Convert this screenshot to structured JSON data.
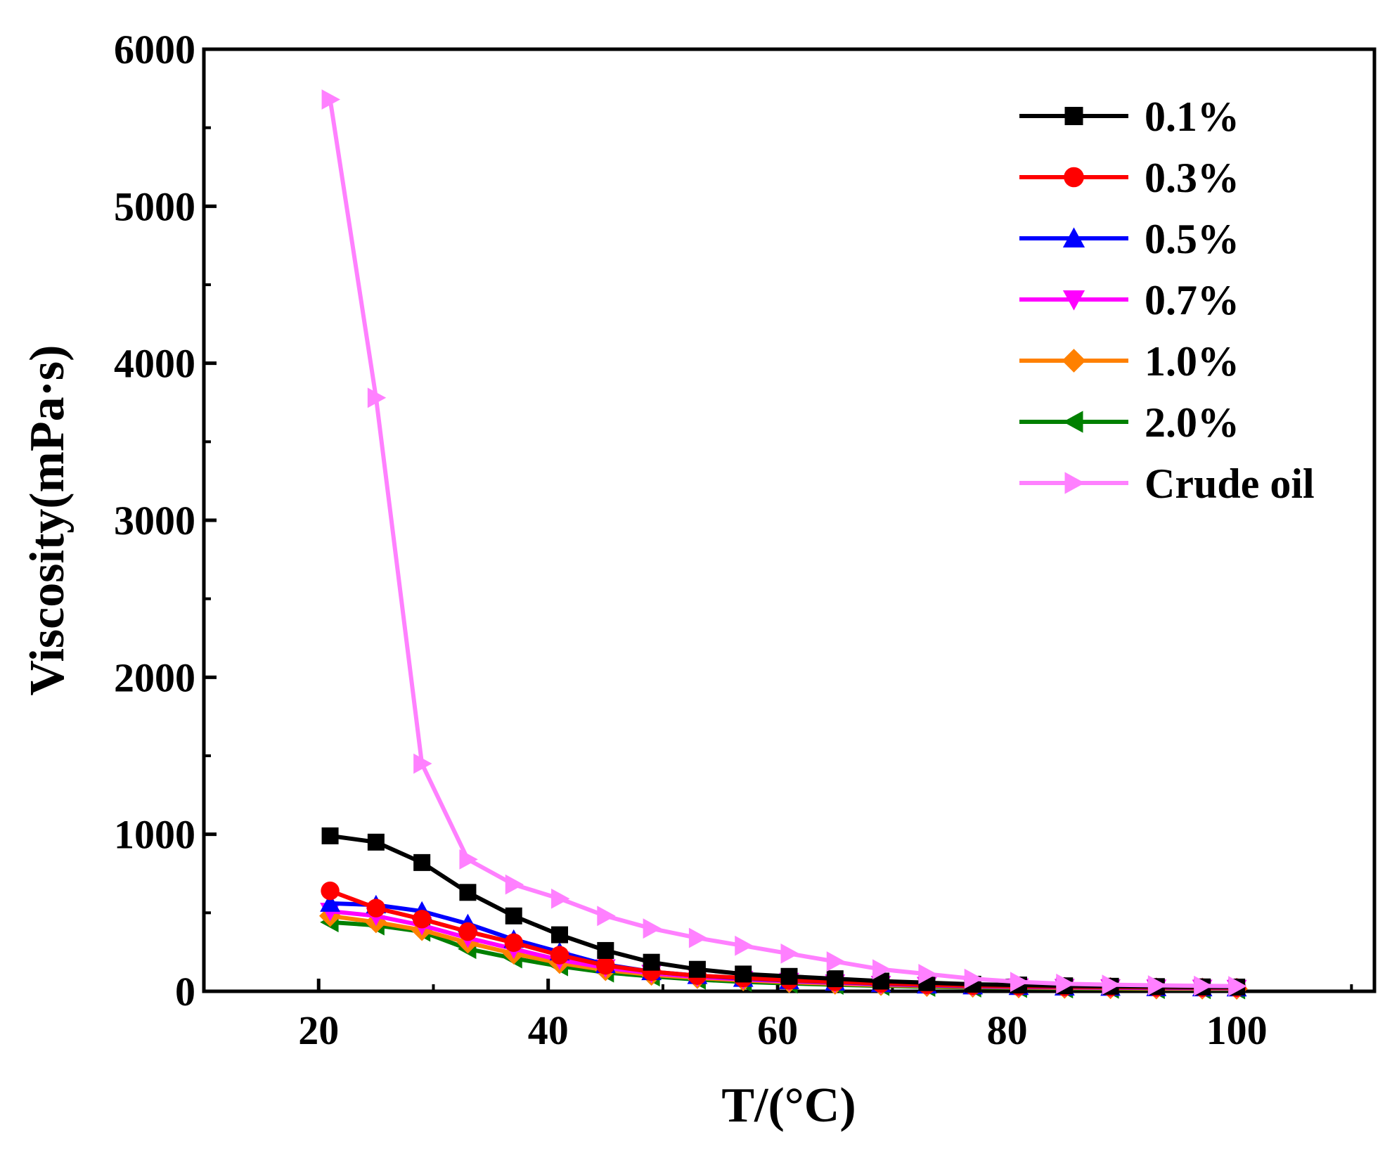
{
  "chart_data": {
    "type": "line",
    "title": "",
    "xlabel": "T/(°C)",
    "ylabel": "Viscosity(mPa·s)",
    "xlim": [
      10,
      112
    ],
    "ylim": [
      0,
      6000
    ],
    "xticks": [
      20,
      40,
      60,
      80,
      100
    ],
    "yticks": [
      0,
      1000,
      2000,
      3000,
      4000,
      5000,
      6000
    ],
    "x": [
      21,
      25,
      29,
      33,
      37,
      41,
      45,
      49,
      53,
      57,
      61,
      65,
      69,
      73,
      77,
      81,
      85,
      89,
      93,
      97,
      100
    ],
    "legend_position": "top-right",
    "grid": false,
    "series": [
      {
        "name": "0.1%",
        "color": "#000000",
        "marker": "square",
        "values": [
          990,
          950,
          820,
          630,
          480,
          360,
          260,
          185,
          140,
          110,
          95,
          80,
          65,
          55,
          45,
          40,
          35,
          32,
          30,
          28,
          27
        ]
      },
      {
        "name": "0.3%",
        "color": "#ff0000",
        "marker": "circle",
        "values": [
          640,
          530,
          460,
          380,
          310,
          230,
          165,
          125,
          100,
          85,
          70,
          60,
          50,
          42,
          36,
          32,
          29,
          27,
          25,
          24,
          23
        ]
      },
      {
        "name": "0.5%",
        "color": "#0000ff",
        "marker": "triangle-up",
        "values": [
          560,
          550,
          510,
          430,
          330,
          250,
          170,
          125,
          100,
          82,
          68,
          58,
          48,
          40,
          34,
          30,
          27,
          25,
          23,
          22,
          21
        ]
      },
      {
        "name": "0.7%",
        "color": "#ff00ff",
        "marker": "triangle-down",
        "values": [
          510,
          480,
          420,
          340,
          270,
          200,
          150,
          115,
          92,
          76,
          64,
          54,
          45,
          38,
          32,
          28,
          25,
          23,
          21,
          20,
          19
        ]
      },
      {
        "name": "1.0%",
        "color": "#ff8000",
        "marker": "diamond",
        "values": [
          480,
          440,
          390,
          310,
          240,
          180,
          135,
          105,
          85,
          70,
          58,
          48,
          40,
          34,
          29,
          25,
          22,
          20,
          18,
          17,
          16
        ]
      },
      {
        "name": "2.0%",
        "color": "#008000",
        "marker": "triangle-left",
        "values": [
          440,
          420,
          380,
          270,
          210,
          160,
          120,
          95,
          75,
          60,
          50,
          42,
          35,
          29,
          25,
          22,
          19,
          17,
          15,
          14,
          13
        ]
      },
      {
        "name": "Crude oil",
        "color": "#ff80ff",
        "marker": "triangle-right",
        "values": [
          5680,
          3780,
          1450,
          840,
          680,
          590,
          480,
          400,
          340,
          290,
          240,
          190,
          140,
          110,
          80,
          60,
          48,
          42,
          38,
          35,
          33
        ]
      }
    ]
  }
}
